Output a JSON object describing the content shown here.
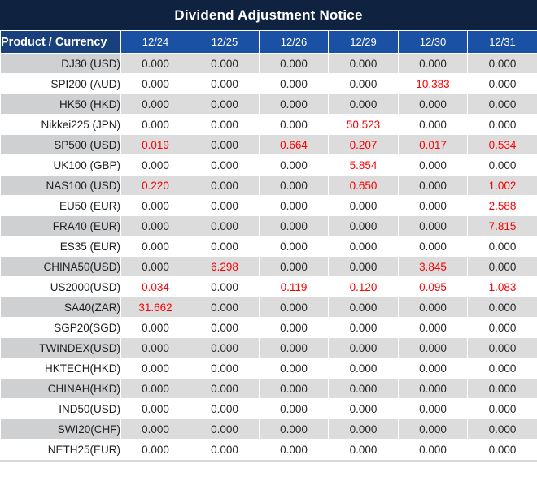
{
  "title": "Dividend Adjustment Notice",
  "table": {
    "product_header": "Product / Currency",
    "date_headers": [
      "12/24",
      "12/25",
      "12/26",
      "12/29",
      "12/30",
      "12/31"
    ],
    "rows": [
      {
        "product": "DJ30 (USD)",
        "values": [
          "0.000",
          "0.000",
          "0.000",
          "0.000",
          "0.000",
          "0.000"
        ]
      },
      {
        "product": "SPI200 (AUD)",
        "values": [
          "0.000",
          "0.000",
          "0.000",
          "0.000",
          "10.383",
          "0.000"
        ]
      },
      {
        "product": "HK50 (HKD)",
        "values": [
          "0.000",
          "0.000",
          "0.000",
          "0.000",
          "0.000",
          "0.000"
        ]
      },
      {
        "product": "Nikkei225 (JPN)",
        "values": [
          "0.000",
          "0.000",
          "0.000",
          "50.523",
          "0.000",
          "0.000"
        ]
      },
      {
        "product": "SP500 (USD)",
        "values": [
          "0.019",
          "0.000",
          "0.664",
          "0.207",
          "0.017",
          "0.534"
        ]
      },
      {
        "product": "UK100 (GBP)",
        "values": [
          "0.000",
          "0.000",
          "0.000",
          "5.854",
          "0.000",
          "0.000"
        ]
      },
      {
        "product": "NAS100 (USD)",
        "values": [
          "0.220",
          "0.000",
          "0.000",
          "0.650",
          "0.000",
          "1.002"
        ]
      },
      {
        "product": "EU50 (EUR)",
        "values": [
          "0.000",
          "0.000",
          "0.000",
          "0.000",
          "0.000",
          "2.588"
        ]
      },
      {
        "product": "FRA40 (EUR)",
        "values": [
          "0.000",
          "0.000",
          "0.000",
          "0.000",
          "0.000",
          "7.815"
        ]
      },
      {
        "product": "ES35 (EUR)",
        "values": [
          "0.000",
          "0.000",
          "0.000",
          "0.000",
          "0.000",
          "0.000"
        ]
      },
      {
        "product": "CHINA50(USD)",
        "values": [
          "0.000",
          "6.298",
          "0.000",
          "0.000",
          "3.845",
          "0.000"
        ]
      },
      {
        "product": "US2000(USD)",
        "values": [
          "0.034",
          "0.000",
          "0.119",
          "0.120",
          "0.095",
          "1.083"
        ]
      },
      {
        "product": "SA40(ZAR)",
        "values": [
          "31.662",
          "0.000",
          "0.000",
          "0.000",
          "0.000",
          "0.000"
        ]
      },
      {
        "product": "SGP20(SGD)",
        "values": [
          "0.000",
          "0.000",
          "0.000",
          "0.000",
          "0.000",
          "0.000"
        ]
      },
      {
        "product": "TWINDEX(USD)",
        "values": [
          "0.000",
          "0.000",
          "0.000",
          "0.000",
          "0.000",
          "0.000"
        ]
      },
      {
        "product": "HKTECH(HKD)",
        "values": [
          "0.000",
          "0.000",
          "0.000",
          "0.000",
          "0.000",
          "0.000"
        ]
      },
      {
        "product": "CHINAH(HKD)",
        "values": [
          "0.000",
          "0.000",
          "0.000",
          "0.000",
          "0.000",
          "0.000"
        ]
      },
      {
        "product": "IND50(USD)",
        "values": [
          "0.000",
          "0.000",
          "0.000",
          "0.000",
          "0.000",
          "0.000"
        ]
      },
      {
        "product": "SWI20(CHF)",
        "values": [
          "0.000",
          "0.000",
          "0.000",
          "0.000",
          "0.000",
          "0.000"
        ]
      },
      {
        "product": "NETH25(EUR)",
        "values": [
          "0.000",
          "0.000",
          "0.000",
          "0.000",
          "0.000",
          "0.000"
        ]
      }
    ]
  },
  "colors": {
    "title_bg": "#0f2240",
    "product_header_bg": "#17407d",
    "date_header_bg": "#1b51a5",
    "row_stripe_product_bg": "#cfd0d2",
    "row_stripe_value_bg": "#dcdcdc",
    "zero_value_text": "#262626",
    "nonzero_value_text": "#fe0000"
  }
}
